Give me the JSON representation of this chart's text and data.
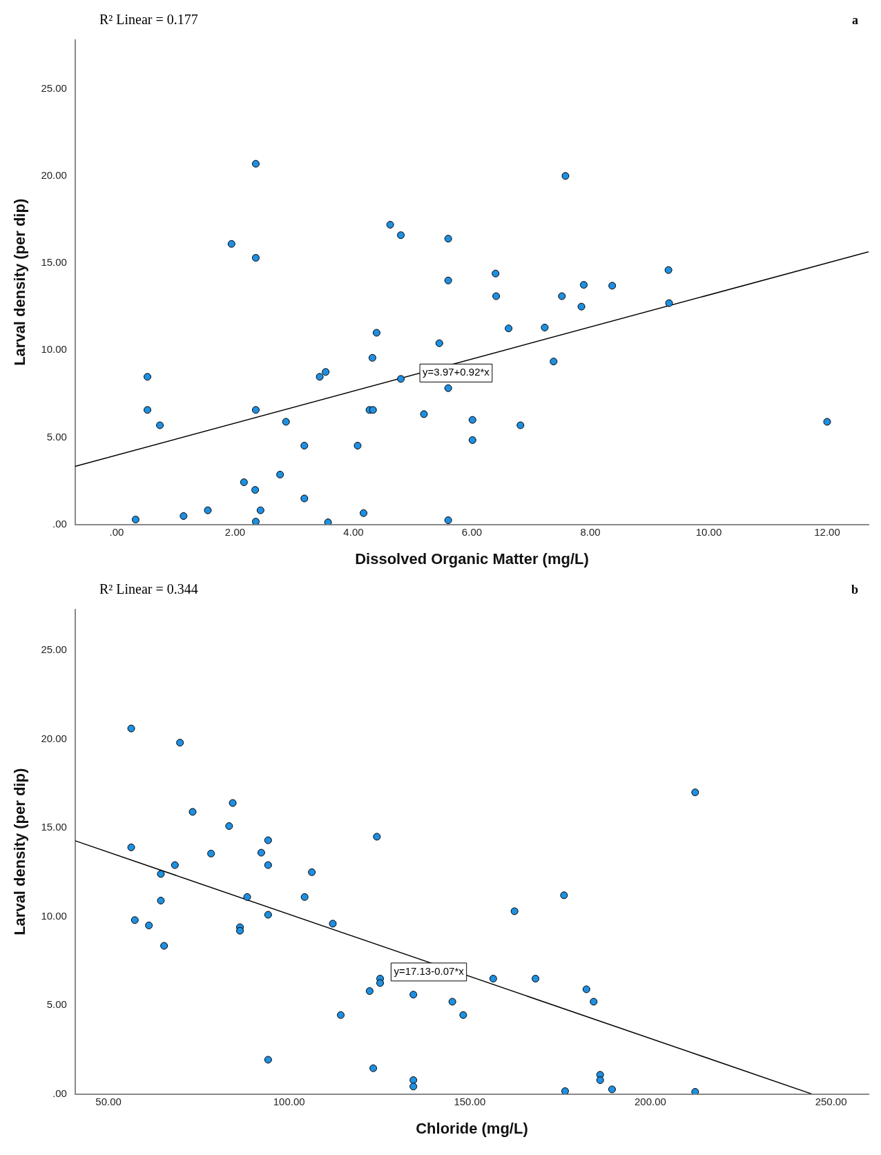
{
  "chart_data": [
    {
      "type": "scatter",
      "xlabel": "Dissolved Organic Matter (mg/L)",
      "ylabel": "Larval density (per dip)",
      "annotations": [
        "R² Linear = 0.177",
        "a",
        "y=3.97+0.92*x"
      ],
      "x": [
        0.32,
        0.52,
        0.52,
        0.73,
        1.13,
        1.54,
        1.94,
        2.15,
        2.34,
        2.35,
        2.35,
        2.35,
        2.35,
        2.43,
        2.76,
        2.86,
        3.17,
        3.17,
        3.43,
        3.53,
        3.57,
        4.07,
        4.17,
        4.27,
        4.33,
        4.32,
        4.39,
        4.62,
        4.8,
        4.8,
        5.19,
        5.45,
        5.6,
        5.6,
        5.6,
        5.6,
        6.01,
        6.01,
        6.41,
        6.4,
        6.62,
        6.82,
        7.23,
        7.38,
        7.52,
        7.58,
        7.85,
        7.89,
        8.37,
        9.32,
        9.33,
        12.0
      ],
      "series": [
        {
          "color": "#1f8fe0",
          "values": [
            0.28,
            8.47,
            6.57,
            5.69,
            0.48,
            0.81,
            16.1,
            2.42,
            1.98,
            20.7,
            15.3,
            6.57,
            0.16,
            0.81,
            2.86,
            5.89,
            4.52,
            1.49,
            8.47,
            8.75,
            0.12,
            4.52,
            0.65,
            6.57,
            6.57,
            9.56,
            11.0,
            17.2,
            16.6,
            8.35,
            6.33,
            10.4,
            16.4,
            14.0,
            7.82,
            0.24,
            6.0,
            4.84,
            13.1,
            14.4,
            11.25,
            5.69,
            11.3,
            9.35,
            13.1,
            20.0,
            12.5,
            13.75,
            13.7,
            14.6,
            12.7,
            5.89
          ]
        },
        {
          "type": "line",
          "marker": "none",
          "color": "#000000",
          "x": [
            -0.7,
            12.7
          ],
          "values": [
            3.33,
            15.65
          ]
        }
      ],
      "xlim": [
        -0.7,
        12.7
      ],
      "xticks": [
        {
          "value": 0,
          "label": ".00"
        },
        {
          "value": 2,
          "label": "2.00"
        },
        {
          "value": 4,
          "label": "4.00"
        },
        {
          "value": 6,
          "label": "6.00"
        },
        {
          "value": 8,
          "label": "8.00"
        },
        {
          "value": 10,
          "label": "10.00"
        },
        {
          "value": 12,
          "label": "12.00"
        }
      ],
      "ylim": [
        0,
        27.8
      ],
      "yticks": [
        {
          "value": 0,
          "label": ".00"
        },
        {
          "value": 5,
          "label": "5.00"
        },
        {
          "value": 10,
          "label": "10.00"
        },
        {
          "value": 15,
          "label": "15.00"
        },
        {
          "value": 20,
          "label": "20.00"
        },
        {
          "value": 25,
          "label": "25.00"
        }
      ],
      "marker": "circle",
      "grid": false,
      "legend": false
    },
    {
      "type": "scatter",
      "xlabel": "Chloride (mg/L)",
      "ylabel": "Larval density (per dip)",
      "annotations": [
        "R² Linear = 0.344",
        "b",
        "y=17.13-0.07*x"
      ],
      "x": [
        56.3,
        69.8,
        73.3,
        84.4,
        83.4,
        56.3,
        94.2,
        124.3,
        78.4,
        92.3,
        94.2,
        68.4,
        64.5,
        106.3,
        88.4,
        104.3,
        64.5,
        94.2,
        57.3,
        61.2,
        86.4,
        86.4,
        112.1,
        65.4,
        125.2,
        125.2,
        122.3,
        134.4,
        145.2,
        148.2,
        114.3,
        94.2,
        123.3,
        134.4,
        134.4,
        212.4,
        176.1,
        162.4,
        156.5,
        168.2,
        182.3,
        184.3,
        186.1,
        186.1,
        189.4,
        176.4,
        212.4
      ],
      "series": [
        {
          "color": "#1f8fe0",
          "values": [
            20.6,
            19.8,
            15.9,
            16.4,
            15.1,
            13.9,
            14.3,
            14.5,
            13.55,
            13.6,
            12.9,
            12.9,
            12.4,
            12.5,
            11.1,
            11.1,
            10.9,
            10.1,
            9.8,
            9.5,
            9.4,
            9.2,
            9.6,
            8.35,
            6.5,
            6.25,
            5.8,
            5.6,
            5.2,
            4.45,
            4.45,
            1.93,
            1.45,
            0.78,
            0.42,
            17.0,
            11.2,
            10.3,
            6.5,
            6.5,
            5.9,
            5.2,
            1.08,
            0.78,
            0.26,
            0.16,
            0.12
          ]
        },
        {
          "type": "line",
          "marker": "none",
          "color": "#000000",
          "x": [
            40.8,
            244.7
          ],
          "values": [
            14.27,
            0
          ]
        }
      ],
      "xlim": [
        40.8,
        260.4
      ],
      "xticks": [
        {
          "value": 50,
          "label": "50.00"
        },
        {
          "value": 100,
          "label": "100.00"
        },
        {
          "value": 150,
          "label": "150.00"
        },
        {
          "value": 200,
          "label": "200.00"
        },
        {
          "value": 250,
          "label": "250.00"
        }
      ],
      "ylim": [
        0,
        27.3
      ],
      "yticks": [
        {
          "value": 0,
          "label": ".00"
        },
        {
          "value": 5,
          "label": "5.00"
        },
        {
          "value": 10,
          "label": "10.00"
        },
        {
          "value": 15,
          "label": "15.00"
        },
        {
          "value": 20,
          "label": "20.00"
        },
        {
          "value": 25,
          "label": "25.00"
        }
      ],
      "marker": "circle",
      "grid": false,
      "legend": false
    }
  ]
}
